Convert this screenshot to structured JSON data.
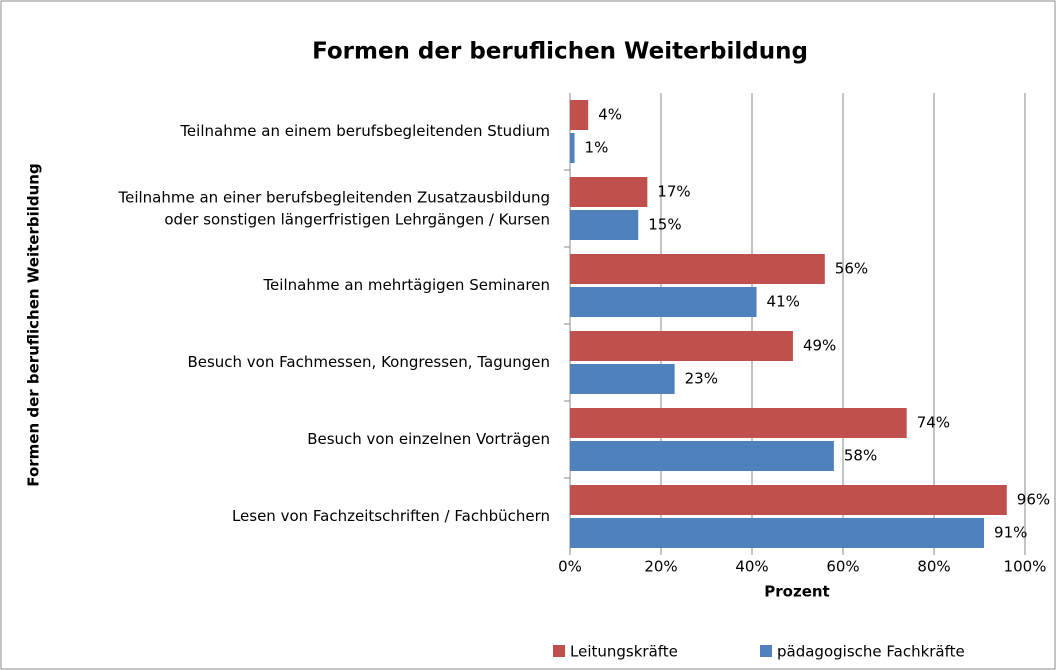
{
  "chart_data": {
    "type": "hbar",
    "title": "Formen der beruflichen Weiterbildung",
    "x_label": "Prozent",
    "y_label": "Formen der beruflichen Weiterbildung",
    "categories": [
      "Teilnahme an einem berufsbegleitenden Studium",
      "Teilnahme an einer berufsbegleitenden Zusatzausbildung\noder sonstigen längerfristigen Lehrgängen / Kursen",
      "Teilnahme an mehrtägigen Seminaren",
      "Besuch von Fachmessen, Kongressen, Tagungen",
      "Besuch von einzelnen Vorträgen",
      "Lesen von Fachzeitschriften / Fachbüchern"
    ],
    "series": [
      {
        "name": "Leitungskräfte",
        "color": "#c0504d",
        "values": [
          4,
          17,
          56,
          49,
          74,
          96
        ],
        "value_labels": [
          "4%",
          "17%",
          "56%",
          "49%",
          "74%",
          "96%"
        ]
      },
      {
        "name": "pädagogische Fachkräfte",
        "color": "#4f81bd",
        "values": [
          1,
          15,
          41,
          23,
          58,
          91
        ],
        "value_labels": [
          "1%",
          "15%",
          "41%",
          "23%",
          "58%",
          "91%"
        ]
      }
    ],
    "xlim": [
      0,
      100
    ],
    "xticks": [
      {
        "value": 0,
        "label": "0%"
      },
      {
        "value": 20,
        "label": "20%"
      },
      {
        "value": 40,
        "label": "40%"
      },
      {
        "value": 60,
        "label": "60%"
      },
      {
        "value": 80,
        "label": "80%"
      },
      {
        "value": 100,
        "label": "100%"
      }
    ],
    "grid": true,
    "legend": "bottom"
  }
}
